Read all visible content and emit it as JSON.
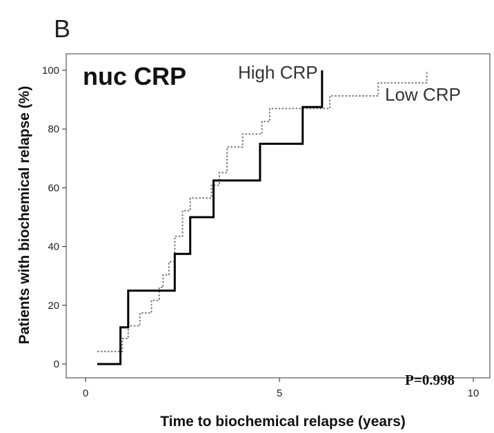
{
  "panel_label": "B",
  "chart_data": {
    "type": "line",
    "title": "nuc CRP",
    "xlabel": "Time to biochemical relapse (years)",
    "ylabel": "Patients with biochemical relapse (%)",
    "xlim": [
      0,
      10
    ],
    "ylim": [
      0,
      100
    ],
    "xticks": [
      0,
      5,
      10
    ],
    "yticks": [
      0,
      20,
      40,
      60,
      80,
      100
    ],
    "grid": false,
    "annotation": "P=0.998",
    "series": [
      {
        "name": "High CRP",
        "style": "solid",
        "color": "#000000",
        "x": [
          0.3,
          0.9,
          0.9,
          1.1,
          1.1,
          2.3,
          2.3,
          2.7,
          2.7,
          3.3,
          3.3,
          4.5,
          4.5,
          5.6,
          5.6,
          6.1,
          6.1
        ],
        "y": [
          0,
          0,
          12.5,
          12.5,
          25,
          25,
          37.5,
          37.5,
          50,
          50,
          62.5,
          62.5,
          75,
          75,
          87.5,
          87.5,
          100
        ]
      },
      {
        "name": "Low CRP",
        "style": "dotted",
        "color": "#777777",
        "x": [
          0.3,
          0.95,
          0.95,
          1.1,
          1.1,
          1.4,
          1.4,
          1.7,
          1.7,
          1.9,
          1.9,
          2.0,
          2.0,
          2.15,
          2.15,
          2.3,
          2.3,
          2.5,
          2.5,
          2.7,
          2.7,
          3.25,
          3.25,
          3.45,
          3.45,
          3.65,
          3.65,
          4.05,
          4.05,
          4.55,
          4.55,
          4.75,
          4.75,
          4.95,
          4.95,
          6.3,
          6.3,
          7.55,
          7.55,
          8.8,
          8.8
        ],
        "y": [
          4.3,
          4.3,
          8.7,
          8.7,
          13,
          13,
          17.4,
          17.4,
          21.7,
          21.7,
          26.1,
          26.1,
          30.4,
          30.4,
          34.8,
          34.8,
          43.5,
          43.5,
          52.2,
          52.2,
          56.5,
          56.5,
          60.9,
          60.9,
          65.2,
          65.2,
          73.9,
          73.9,
          78.3,
          78.3,
          82.6,
          82.6,
          87,
          87,
          87,
          87,
          91.3,
          91.3,
          95.7,
          95.7,
          100
        ]
      }
    ]
  }
}
